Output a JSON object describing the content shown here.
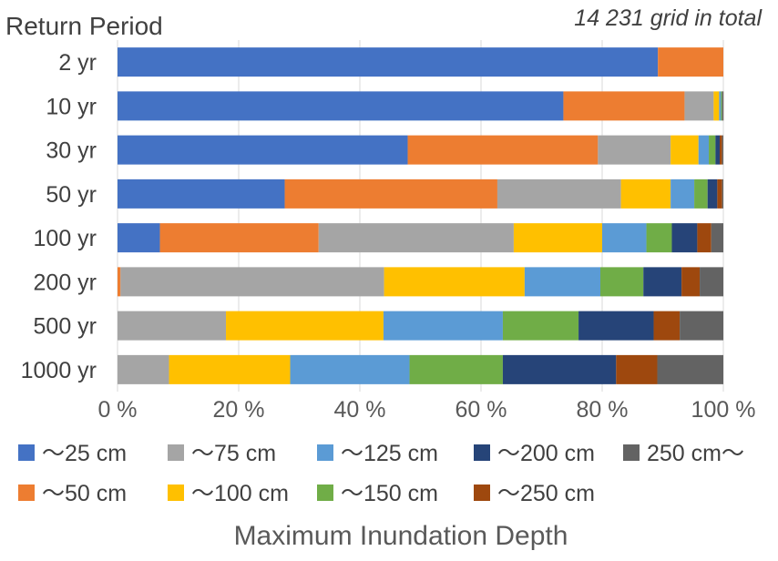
{
  "chart_data": {
    "type": "bar",
    "orientation": "horizontal",
    "stacked": "percent",
    "title": "",
    "annotation": "14 231 grid in total",
    "ylabel": "Return Period",
    "xlabel": "Maximum Inundation Depth",
    "xlim": [
      0,
      100
    ],
    "x_ticks": [
      "0 %",
      "20 %",
      "40 %",
      "60 %",
      "80 %",
      "100 %"
    ],
    "grid": "vertical",
    "legend_position": "bottom",
    "categories": [
      "2 yr",
      "10 yr",
      "30 yr",
      "50 yr",
      "100 yr",
      "200 yr",
      "500 yr",
      "1000 yr"
    ],
    "series": [
      {
        "name": "～25 cm",
        "color": "#4472c4",
        "values": [
          89.2,
          73.6,
          47.9,
          27.6,
          7.0,
          0.0,
          0.0,
          0.0
        ]
      },
      {
        "name": "～50 cm",
        "color": "#ed7d31",
        "values": [
          10.8,
          20.0,
          31.4,
          35.1,
          26.2,
          0.5,
          0.0,
          0.0
        ]
      },
      {
        "name": "～75 cm",
        "color": "#a5a5a5",
        "values": [
          0.0,
          4.8,
          12.0,
          20.4,
          32.2,
          43.5,
          17.9,
          8.5
        ]
      },
      {
        "name": "～100 cm",
        "color": "#ffc000",
        "values": [
          0.0,
          0.9,
          4.6,
          8.2,
          14.6,
          23.2,
          26.0,
          20.0
        ]
      },
      {
        "name": "～125 cm",
        "color": "#5b9bd5",
        "values": [
          0.0,
          0.3,
          1.7,
          3.9,
          7.3,
          12.5,
          19.7,
          19.7
        ]
      },
      {
        "name": "～150 cm",
        "color": "#70ad47",
        "values": [
          0.0,
          0.2,
          1.1,
          2.2,
          4.2,
          7.1,
          12.5,
          15.4
        ]
      },
      {
        "name": "～200 cm",
        "color": "#264478",
        "values": [
          0.0,
          0.1,
          0.7,
          1.6,
          4.2,
          6.3,
          12.4,
          18.7
        ]
      },
      {
        "name": "～250 cm",
        "color": "#9e480e",
        "values": [
          0.0,
          0.05,
          0.4,
          0.8,
          2.3,
          3.0,
          4.3,
          6.8
        ]
      },
      {
        "name": "250 cm～",
        "color": "#636363",
        "values": [
          0.0,
          0.05,
          0.2,
          0.2,
          2.0,
          3.9,
          7.2,
          10.9
        ]
      }
    ]
  }
}
